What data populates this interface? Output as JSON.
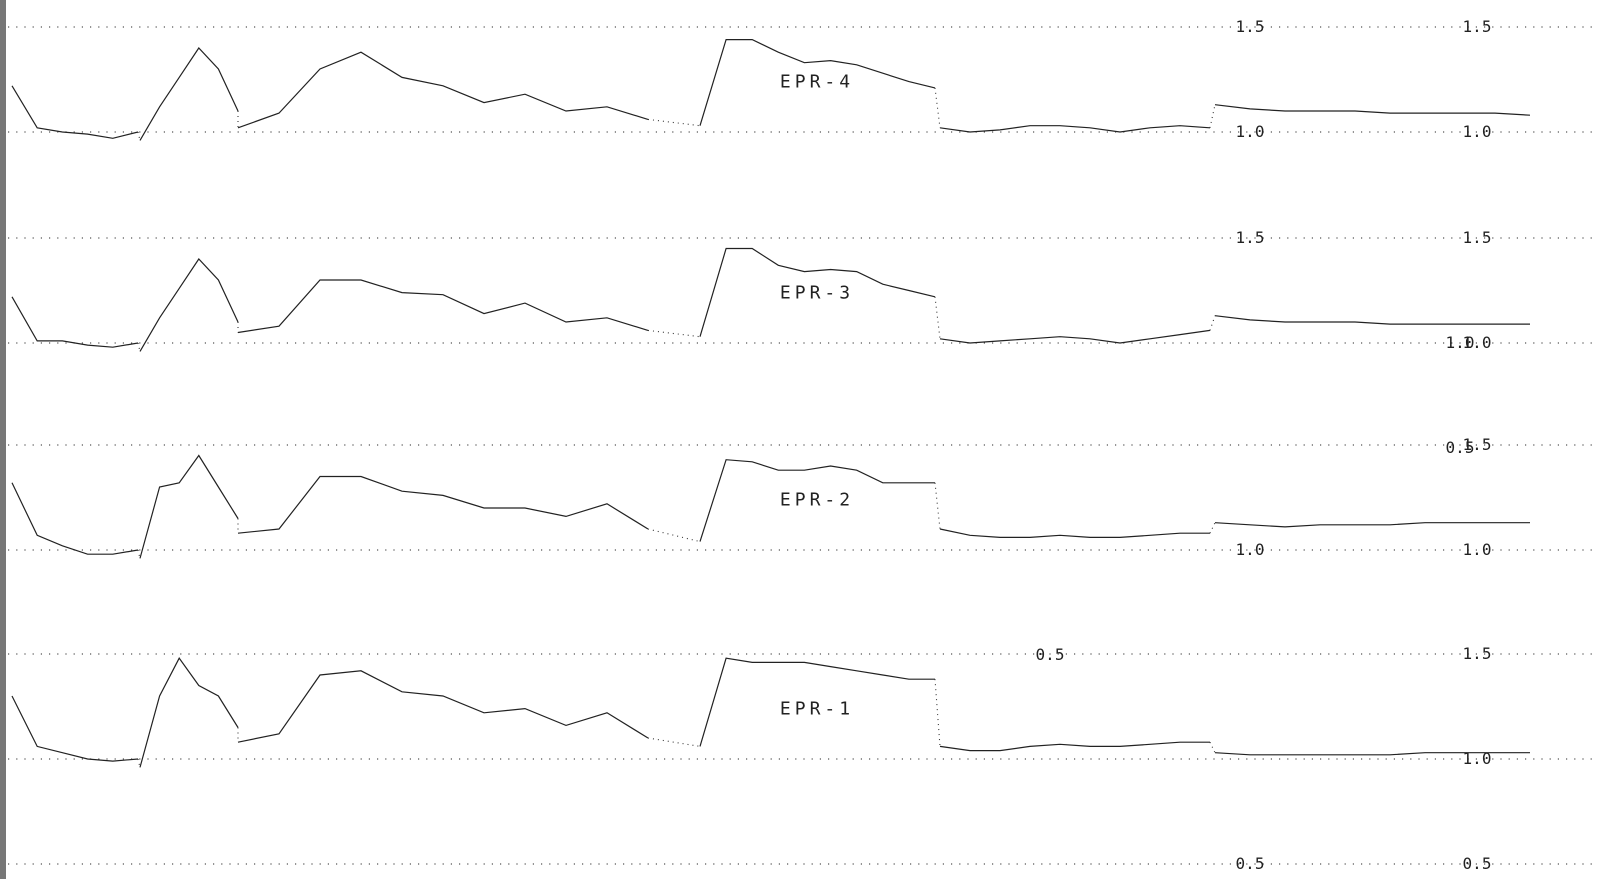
{
  "chart_data": {
    "type": "line",
    "title": "",
    "xlabel": "",
    "ylabel": "",
    "grid": true,
    "panels": [
      {
        "name": "EPR-4",
        "ticks": [
          {
            "value": 1.5,
            "label": "1.5"
          },
          {
            "value": 1.0,
            "label": "1.0"
          }
        ],
        "grid_values": [
          1.5,
          1.0
        ],
        "segment_labels": [
          {
            "segment": "E",
            "value": 1.5,
            "label": "1.5"
          },
          {
            "segment": "E",
            "value": 1.0,
            "label": "1.0"
          }
        ],
        "segments": [
          {
            "id": "A",
            "y": [
              1.22,
              1.02,
              1.0,
              0.99,
              0.97,
              1.0
            ]
          },
          {
            "id": "B",
            "y": [
              0.96,
              1.12,
              1.26,
              1.4,
              1.3,
              1.1
            ]
          },
          {
            "id": "C",
            "y": [
              1.02,
              1.09,
              1.3,
              1.38,
              1.26,
              1.22,
              1.14,
              1.18,
              1.1,
              1.12,
              1.06
            ]
          },
          {
            "id": "D",
            "y": [
              1.03,
              1.44,
              1.44,
              1.38,
              1.33,
              1.34,
              1.32,
              1.28,
              1.24,
              1.21
            ]
          },
          {
            "id": "E",
            "y": [
              1.02,
              1.0,
              1.01,
              1.03,
              1.03,
              1.02,
              1.0,
              1.02,
              1.03,
              1.02
            ]
          },
          {
            "id": "F",
            "y": [
              1.13,
              1.11,
              1.1,
              1.1,
              1.1,
              1.09,
              1.09,
              1.09,
              1.09,
              1.08
            ]
          }
        ]
      },
      {
        "name": "EPR-3",
        "ticks": [
          {
            "value": 1.5,
            "label": "1.5"
          },
          {
            "value": 1.0,
            "label": "1.0"
          }
        ],
        "grid_values": [
          1.5,
          1.0
        ],
        "segment_labels": [
          {
            "segment": "E",
            "value": 1.5,
            "label": "1.5"
          },
          {
            "segment": "F",
            "value": 0.5,
            "label": "0.5"
          },
          {
            "segment": "F",
            "value": 1.0,
            "label": "1.0"
          }
        ],
        "segments": [
          {
            "id": "A",
            "y": [
              1.22,
              1.01,
              1.01,
              0.99,
              0.98,
              1.0
            ]
          },
          {
            "id": "B",
            "y": [
              0.96,
              1.12,
              1.26,
              1.4,
              1.3,
              1.1
            ]
          },
          {
            "id": "C",
            "y": [
              1.05,
              1.08,
              1.3,
              1.3,
              1.24,
              1.23,
              1.14,
              1.19,
              1.1,
              1.12,
              1.06
            ]
          },
          {
            "id": "D",
            "y": [
              1.03,
              1.45,
              1.45,
              1.37,
              1.34,
              1.35,
              1.34,
              1.28,
              1.25,
              1.22
            ]
          },
          {
            "id": "E",
            "y": [
              1.02,
              1.0,
              1.01,
              1.02,
              1.03,
              1.02,
              1.0,
              1.02,
              1.04,
              1.06
            ]
          },
          {
            "id": "F",
            "y": [
              1.13,
              1.11,
              1.1,
              1.1,
              1.1,
              1.09,
              1.09,
              1.09,
              1.09,
              1.09
            ]
          }
        ]
      },
      {
        "name": "EPR-2",
        "ticks": [
          {
            "value": 1.5,
            "label": "1.5"
          },
          {
            "value": 1.0,
            "label": "1.0"
          }
        ],
        "grid_values": [
          1.5,
          1.0
        ],
        "segment_labels": [
          {
            "segment": "D",
            "value": 0.5,
            "label": "0.5"
          },
          {
            "segment": "E",
            "value": 1.0,
            "label": "1.0"
          }
        ],
        "segments": [
          {
            "id": "A",
            "y": [
              1.32,
              1.07,
              1.02,
              0.98,
              0.98,
              1.0
            ]
          },
          {
            "id": "B",
            "y": [
              0.96,
              1.3,
              1.32,
              1.45,
              1.3,
              1.15
            ]
          },
          {
            "id": "C",
            "y": [
              1.08,
              1.1,
              1.35,
              1.35,
              1.28,
              1.26,
              1.2,
              1.2,
              1.16,
              1.22,
              1.1
            ]
          },
          {
            "id": "D",
            "y": [
              1.04,
              1.43,
              1.42,
              1.38,
              1.38,
              1.4,
              1.38,
              1.32,
              1.32,
              1.32
            ]
          },
          {
            "id": "E",
            "y": [
              1.1,
              1.07,
              1.06,
              1.06,
              1.07,
              1.06,
              1.06,
              1.07,
              1.08,
              1.08
            ]
          },
          {
            "id": "F",
            "y": [
              1.13,
              1.12,
              1.11,
              1.12,
              1.12,
              1.12,
              1.13,
              1.13,
              1.13,
              1.13
            ]
          }
        ]
      },
      {
        "name": "EPR-1",
        "ticks": [
          {
            "value": 1.5,
            "label": "1.5"
          },
          {
            "value": 1.0,
            "label": "1.0"
          },
          {
            "value": 0.5,
            "label": "0.5"
          }
        ],
        "grid_values": [
          1.5,
          1.0,
          0.5
        ],
        "segment_labels": [
          {
            "segment": "E",
            "value": 0.5,
            "label": "0.5"
          }
        ],
        "segments": [
          {
            "id": "A",
            "y": [
              1.3,
              1.06,
              1.03,
              1.0,
              0.99,
              1.0
            ]
          },
          {
            "id": "B",
            "y": [
              0.96,
              1.3,
              1.48,
              1.35,
              1.3,
              1.15
            ]
          },
          {
            "id": "C",
            "y": [
              1.08,
              1.12,
              1.4,
              1.42,
              1.32,
              1.3,
              1.22,
              1.24,
              1.16,
              1.22,
              1.1
            ]
          },
          {
            "id": "D",
            "y": [
              1.06,
              1.48,
              1.46,
              1.46,
              1.46,
              1.44,
              1.42,
              1.4,
              1.38,
              1.38
            ]
          },
          {
            "id": "E",
            "y": [
              1.06,
              1.04,
              1.04,
              1.06,
              1.07,
              1.06,
              1.06,
              1.07,
              1.08,
              1.08
            ]
          },
          {
            "id": "F",
            "y": [
              1.03,
              1.02,
              1.02,
              1.02,
              1.02,
              1.02,
              1.03,
              1.03,
              1.03,
              1.03
            ]
          }
        ]
      }
    ]
  }
}
